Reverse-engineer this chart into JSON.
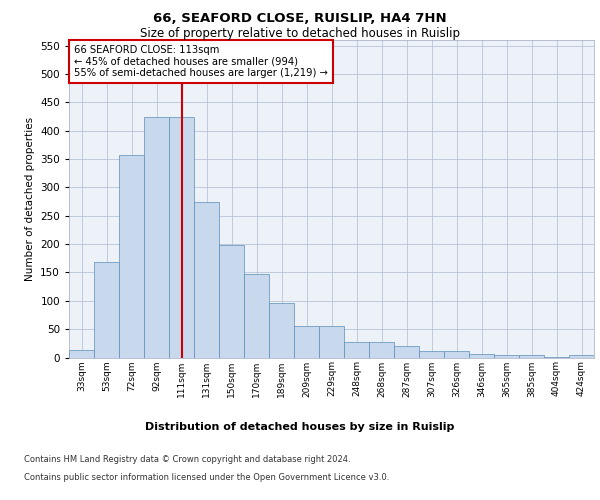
{
  "title1": "66, SEAFORD CLOSE, RUISLIP, HA4 7HN",
  "title2": "Size of property relative to detached houses in Ruislip",
  "xlabel": "Distribution of detached houses by size in Ruislip",
  "ylabel": "Number of detached properties",
  "categories": [
    "33sqm",
    "53sqm",
    "72sqm",
    "92sqm",
    "111sqm",
    "131sqm",
    "150sqm",
    "170sqm",
    "189sqm",
    "209sqm",
    "229sqm",
    "248sqm",
    "268sqm",
    "287sqm",
    "307sqm",
    "326sqm",
    "346sqm",
    "365sqm",
    "385sqm",
    "404sqm",
    "424sqm"
  ],
  "values": [
    13,
    168,
    357,
    425,
    425,
    275,
    199,
    148,
    96,
    55,
    55,
    27,
    27,
    20,
    11,
    11,
    6,
    5,
    4,
    1,
    4
  ],
  "bar_color": "#c8d9ee",
  "bar_edge_color": "#5b8db8",
  "vline_x": 4,
  "vline_color": "#cc0000",
  "annotation_line1": "66 SEAFORD CLOSE: 113sqm",
  "annotation_line2": "← 45% of detached houses are smaller (994)",
  "annotation_line3": "55% of semi-detached houses are larger (1,219) →",
  "annotation_box_color": "#ffffff",
  "annotation_box_edge_color": "#cc0000",
  "ylim": [
    0,
    560
  ],
  "yticks": [
    0,
    50,
    100,
    150,
    200,
    250,
    300,
    350,
    400,
    450,
    500,
    550
  ],
  "footer1": "Contains HM Land Registry data © Crown copyright and database right 2024.",
  "footer2": "Contains public sector information licensed under the Open Government Licence v3.0.",
  "plot_bg_color": "#edf1f8"
}
